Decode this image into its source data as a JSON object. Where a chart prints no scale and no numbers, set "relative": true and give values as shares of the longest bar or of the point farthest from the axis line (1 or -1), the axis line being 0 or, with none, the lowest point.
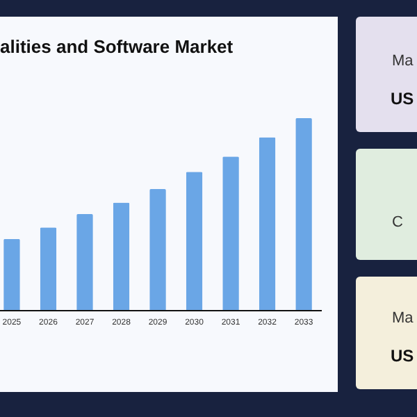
{
  "chart_data": [
    {
      "type": "bar",
      "title": "alities and Software Market",
      "categories": [
        "2025",
        "2026",
        "2027",
        "2028",
        "2029",
        "2030",
        "2031",
        "2032",
        "2033"
      ],
      "values": [
        0.37,
        0.43,
        0.5,
        0.56,
        0.63,
        0.72,
        0.8,
        0.9,
        1
      ],
      "color": "#6aa6e6",
      "relative": true
    },
    {
      "type": "other",
      "annotations": [
        "Ma",
        "US",
        "C",
        "Ma",
        "US"
      ]
    }
  ]
}
